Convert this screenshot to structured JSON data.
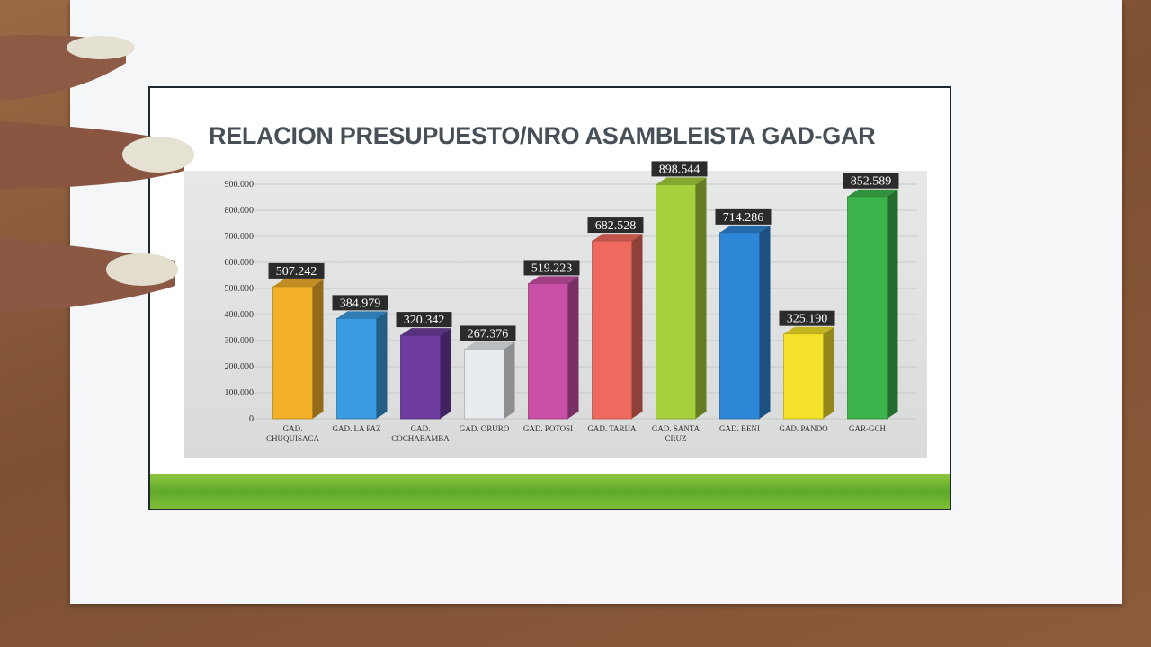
{
  "chart_data": {
    "type": "bar",
    "title": "RELACION PRESUPUESTO/NRO ASAMBLEISTA GAD-GAR",
    "categories": [
      [
        "GAD.",
        "CHUQUISACA"
      ],
      [
        "GAD. LA PAZ"
      ],
      [
        "GAD.",
        "COCHABAMBA"
      ],
      [
        "GAD. ORURO"
      ],
      [
        "GAD. POTOSI"
      ],
      [
        "GAD. TARIJA"
      ],
      [
        "GAD. SANTA",
        "CRUZ"
      ],
      [
        "GAD. BENI"
      ],
      [
        "GAD. PANDO"
      ],
      [
        "GAR-GCH"
      ]
    ],
    "values": [
      507242,
      384979,
      320342,
      267376,
      519223,
      682528,
      898544,
      714286,
      325190,
      852589
    ],
    "value_labels": [
      "507.242",
      "384.979",
      "320.342",
      "267.376",
      "519.223",
      "682.528",
      "898.544",
      "714.286",
      "325.190",
      "852.589"
    ],
    "bar_colors": [
      "#f3b12a",
      "#3a9be0",
      "#6d3c9e",
      "#e9ecef",
      "#c94fa6",
      "#ef6a5e",
      "#a6d13c",
      "#2e86d6",
      "#f4e22a",
      "#3cb44b"
    ],
    "ylim": [
      0,
      900000
    ],
    "yticks": [
      0,
      100000,
      200000,
      300000,
      400000,
      500000,
      600000,
      700000,
      800000,
      900000
    ],
    "ytick_labels": [
      "0",
      "100.000",
      "200.000",
      "300.000",
      "400.000",
      "500.000",
      "600.000",
      "700.000",
      "800.000",
      "900.000"
    ],
    "xlabel": "",
    "ylabel": "",
    "grid": true,
    "legend": "none",
    "style": "3d-column"
  },
  "colors": {
    "title": "#474f57",
    "label_box": "#2b2b2b",
    "band": "#6fb530"
  }
}
